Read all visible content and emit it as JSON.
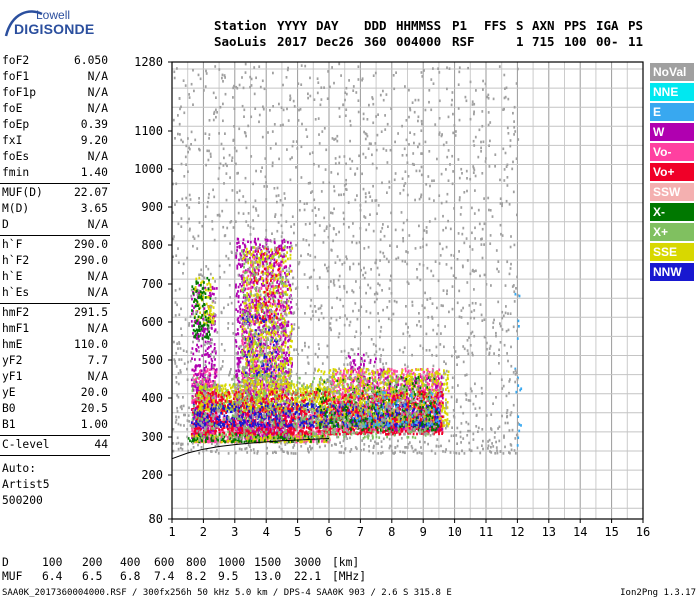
{
  "logo": {
    "line1": "Lowell",
    "line2": "DIGISONDE"
  },
  "header": {
    "row1": [
      "Station",
      "YYYY",
      "DAY",
      "DDD",
      "HHMMSS",
      "P1",
      "FFS",
      "S",
      "AXN",
      "PPS",
      "IGA",
      "PS"
    ],
    "row2": [
      "SaoLuis",
      "2017",
      "Dec26",
      "360",
      "004000",
      "RSF",
      "1",
      "715",
      "100",
      "00-",
      "11"
    ]
  },
  "params": [
    {
      "k": "foF2",
      "v": "6.050"
    },
    {
      "k": "foF1",
      "v": "N/A"
    },
    {
      "k": "foF1p",
      "v": "N/A"
    },
    {
      "k": "foE",
      "v": "N/A"
    },
    {
      "k": "foEp",
      "v": "0.39"
    },
    {
      "k": "fxI",
      "v": "9.20"
    },
    {
      "k": "foEs",
      "v": "N/A"
    },
    {
      "k": "fmin",
      "v": "1.40"
    },
    {
      "k": "MUF(D)",
      "v": "22.07"
    },
    {
      "k": "M(D)",
      "v": "3.65"
    },
    {
      "k": "D",
      "v": "N/A"
    },
    {
      "k": "h`F",
      "v": "290.0"
    },
    {
      "k": "h`F2",
      "v": "290.0"
    },
    {
      "k": "h`E",
      "v": "N/A"
    },
    {
      "k": "h`Es",
      "v": "N/A"
    },
    {
      "k": "hmF2",
      "v": "291.5"
    },
    {
      "k": "hmF1",
      "v": "N/A"
    },
    {
      "k": "hmE",
      "v": "110.0"
    },
    {
      "k": "yF2",
      "v": "7.7"
    },
    {
      "k": "yF1",
      "v": "N/A"
    },
    {
      "k": "yE",
      "v": "20.0"
    },
    {
      "k": "B0",
      "v": "20.5"
    },
    {
      "k": "B1",
      "v": "1.00"
    },
    {
      "k": "C-level",
      "v": "44"
    }
  ],
  "notes": {
    "auto": "Auto:",
    "artist": "Artist5",
    "code": "500200"
  },
  "legend": [
    {
      "label": "NoVal",
      "color": "#a0a0a0"
    },
    {
      "label": "NNE",
      "color": "#00e8f0"
    },
    {
      "label": "E",
      "color": "#38a8f0"
    },
    {
      "label": "W",
      "color": "#b000b0"
    },
    {
      "label": "Vo-",
      "color": "#ff40a0"
    },
    {
      "label": "Vo+",
      "color": "#f00028"
    },
    {
      "label": "SSW",
      "color": "#f4b0b0"
    },
    {
      "label": "X-",
      "color": "#007800"
    },
    {
      "label": "X+",
      "color": "#80c060"
    },
    {
      "label": "SSE",
      "color": "#d8d800"
    },
    {
      "label": "NNW",
      "color": "#1818d0"
    }
  ],
  "dmuf": {
    "d_label": "D",
    "d_values": [
      "100",
      "200",
      "400",
      "600",
      "800",
      "1000",
      "1500",
      "3000"
    ],
    "d_unit": "[km]",
    "muf_label": "MUF",
    "muf_values": [
      "6.4",
      "6.5",
      "6.8",
      "7.4",
      "8.2",
      "9.5",
      "13.0",
      "22.1"
    ],
    "muf_unit": "[MHz]"
  },
  "footer": {
    "left": "SAA0K_2017360004000.RSF / 300fx256h 50 kHz 5.0 km / DPS-4 SAA0K 903 / 2.6 S 315.8 E",
    "right": "Ion2Png 1.3.17"
  },
  "chart_data": {
    "type": "scatter",
    "x_ticks": [
      1,
      2,
      3,
      4,
      5,
      6,
      7,
      8,
      9,
      10,
      11,
      12,
      13,
      14,
      15,
      16
    ],
    "y_ticks": [
      80,
      200,
      300,
      400,
      500,
      600,
      700,
      800,
      900,
      1000,
      1100,
      1280
    ],
    "xlim": [
      1,
      16
    ],
    "ylim": [
      80,
      1280
    ],
    "grid": true,
    "legend_placement": "right",
    "trace_curve": {
      "x": [
        1.0,
        1.5,
        2.0,
        2.5,
        3.0,
        3.5,
        4.0,
        4.5,
        5.0,
        5.5,
        6.0
      ],
      "y": [
        243,
        258,
        268,
        275,
        280,
        284,
        287,
        290,
        292,
        294,
        296
      ]
    },
    "series": [
      {
        "color": "#ff40a0",
        "clusters": [
          [
            1.6,
            2.4,
            290,
            480,
            0.6
          ],
          [
            2.5,
            6.0,
            290,
            360,
            0.55
          ],
          [
            6.0,
            9.6,
            320,
            480,
            0.45
          ],
          [
            3.2,
            4.6,
            420,
            780,
            0.22
          ]
        ]
      },
      {
        "color": "#b000b0",
        "clusters": [
          [
            3.0,
            4.8,
            300,
            820,
            0.35
          ],
          [
            1.6,
            2.4,
            300,
            700,
            0.3
          ],
          [
            7.8,
            9.6,
            320,
            460,
            0.3
          ],
          [
            6.6,
            7.8,
            340,
            520,
            0.2
          ]
        ]
      },
      {
        "color": "#d8d800",
        "clusters": [
          [
            1.8,
            6.0,
            370,
            440,
            0.6
          ],
          [
            3.2,
            4.8,
            440,
            800,
            0.22
          ],
          [
            5.6,
            9.8,
            330,
            480,
            0.35
          ],
          [
            1.6,
            6.0,
            290,
            310,
            0.5
          ],
          [
            1.7,
            2.3,
            600,
            720,
            0.3
          ]
        ]
      },
      {
        "color": "#f00028",
        "clusters": [
          [
            1.6,
            9.6,
            310,
            420,
            0.35
          ],
          [
            3.6,
            4.4,
            600,
            800,
            0.1
          ]
        ]
      },
      {
        "color": "#1818d0",
        "clusters": [
          [
            1.6,
            9.5,
            330,
            390,
            0.3
          ],
          [
            3.2,
            4.4,
            460,
            620,
            0.1
          ]
        ]
      },
      {
        "color": "#007800",
        "clusters": [
          [
            1.6,
            2.2,
            560,
            720,
            0.25
          ],
          [
            1.5,
            6.0,
            290,
            310,
            0.3
          ],
          [
            5.6,
            9.5,
            320,
            460,
            0.12
          ]
        ]
      },
      {
        "color": "#80c060",
        "clusters": [
          [
            1.6,
            9.2,
            300,
            460,
            0.12
          ],
          [
            3.2,
            4.6,
            460,
            800,
            0.08
          ]
        ]
      },
      {
        "color": "#38a8f0",
        "clusters": [
          [
            6.5,
            9.5,
            330,
            420,
            0.08
          ],
          [
            11.9,
            12.1,
            280,
            720,
            0.05
          ]
        ]
      },
      {
        "color": "#a0a0a0",
        "clusters": [
          [
            1.0,
            12.0,
            260,
            1280,
            0.05
          ]
        ]
      }
    ]
  }
}
